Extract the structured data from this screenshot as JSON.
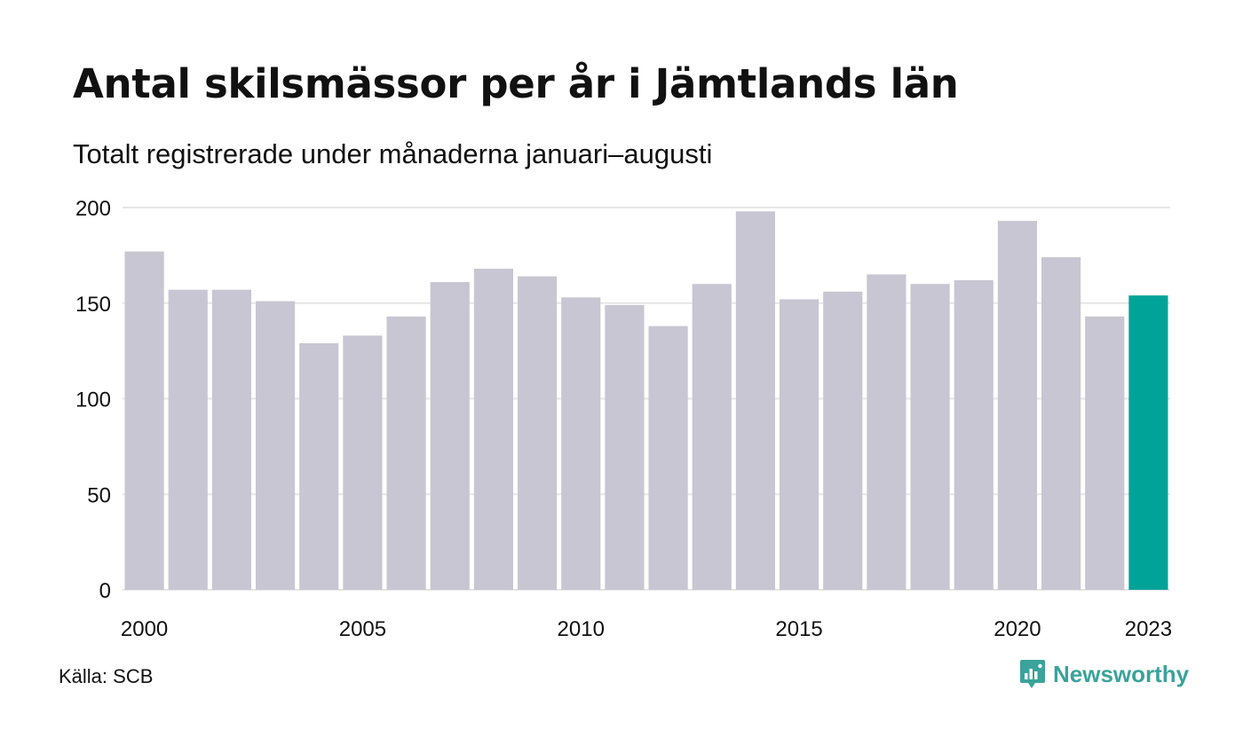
{
  "header": {
    "title": "Antal skilsmässor per år i Jämtlands län",
    "subtitle": "Totalt registrerade under månaderna januari–augusti"
  },
  "footer": {
    "source": "Källa: SCB",
    "brand": "Newsworthy",
    "brand_icon": "newsworthy-logo-icon"
  },
  "colors": {
    "bar": "#c8c6d2",
    "highlight": "#00a398",
    "grid": "#e6e6e6",
    "brand": "#3aa39a"
  },
  "chart_data": {
    "type": "bar",
    "categories": [
      "2000",
      "2001",
      "2002",
      "2003",
      "2004",
      "2005",
      "2006",
      "2007",
      "2008",
      "2009",
      "2010",
      "2011",
      "2012",
      "2013",
      "2014",
      "2015",
      "2016",
      "2017",
      "2018",
      "2019",
      "2020",
      "2021",
      "2022",
      "2023"
    ],
    "values": [
      177,
      157,
      157,
      151,
      129,
      133,
      143,
      161,
      168,
      164,
      153,
      149,
      138,
      160,
      198,
      152,
      156,
      165,
      160,
      162,
      193,
      174,
      143,
      154
    ],
    "highlight_category": "2023",
    "ylim": [
      0,
      200
    ],
    "yticks": [
      0,
      50,
      100,
      150,
      200
    ],
    "xtick_labels": [
      "2000",
      "2005",
      "2010",
      "2015",
      "2020",
      "2023"
    ],
    "grid": true,
    "legend": "none"
  }
}
